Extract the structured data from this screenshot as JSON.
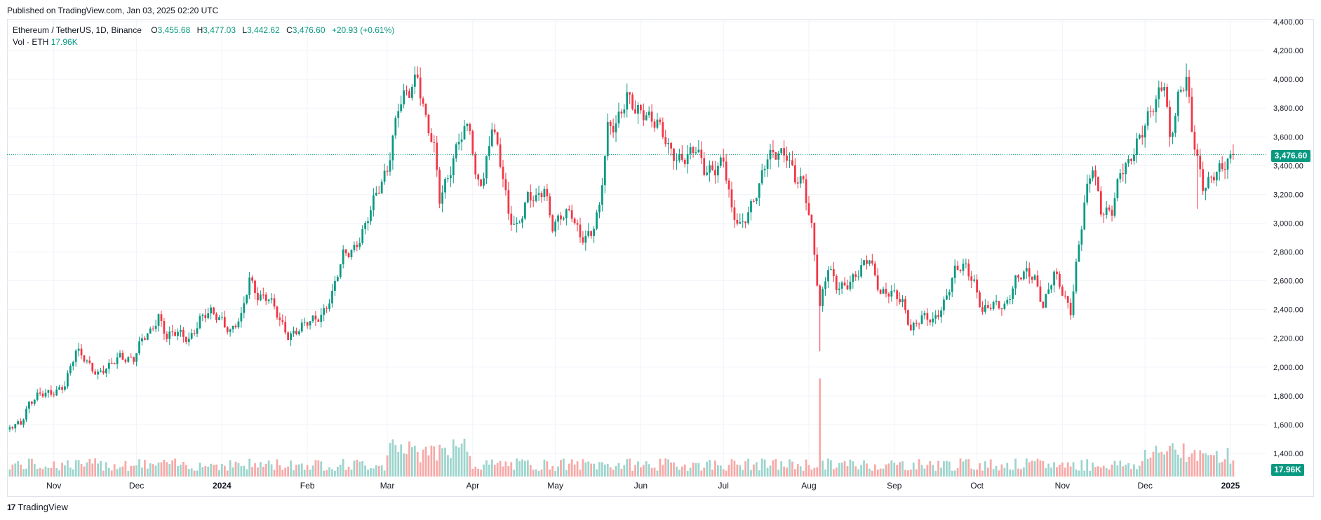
{
  "header": {
    "published": "Published on TradingView.com, Jan 03, 2025 02:20 UTC"
  },
  "legend": {
    "symbol": "Ethereum / TetherUS, 1D, Binance",
    "o_label": "O",
    "o_value": "3,455.68",
    "h_label": "H",
    "h_value": "3,477.03",
    "l_label": "L",
    "l_value": "3,442.62",
    "c_label": "C",
    "c_value": "3,476.60",
    "change": "+20.93 (+0.61%)",
    "vol_label": "Vol · ETH",
    "vol_value": "17.96K"
  },
  "price_tag": "3,476.60",
  "vol_tag": "17.96K",
  "footer": {
    "logo": "17",
    "brand": "TradingView"
  },
  "colors": {
    "up": "#089981",
    "down": "#f23645",
    "up_vol": "#9cd5cd",
    "down_vol": "#f7a9a7",
    "grid": "#f0f3fa",
    "axis_text": "#131722"
  },
  "chart_data": {
    "type": "candlestick",
    "title": "Ethereum / TetherUS, 1D, Binance",
    "ylim": [
      1500,
      4400
    ],
    "y_ticks": [
      "1,400.00",
      "1,600.00",
      "1,800.00",
      "2,000.00",
      "2,200.00",
      "2,400.00",
      "2,600.00",
      "2,800.00",
      "3,000.00",
      "3,200.00",
      "3,400.00",
      "3,600.00",
      "3,800.00",
      "4,000.00",
      "4,200.00",
      "4,400.00"
    ],
    "y_tick_values": [
      1400,
      1600,
      1800,
      2000,
      2200,
      2400,
      2600,
      2800,
      3000,
      3200,
      3400,
      3600,
      3800,
      4000,
      4200,
      4400
    ],
    "x_ticks": [
      {
        "label": "Nov",
        "date": "2023-11-01"
      },
      {
        "label": "Dec",
        "date": "2023-12-01"
      },
      {
        "label": "2024",
        "date": "2024-01-01",
        "bold": true
      },
      {
        "label": "Feb",
        "date": "2024-02-01"
      },
      {
        "label": "Mar",
        "date": "2024-03-01"
      },
      {
        "label": "Apr",
        "date": "2024-04-01"
      },
      {
        "label": "May",
        "date": "2024-05-01"
      },
      {
        "label": "Jun",
        "date": "2024-06-01"
      },
      {
        "label": "Jul",
        "date": "2024-07-01"
      },
      {
        "label": "Aug",
        "date": "2024-08-01"
      },
      {
        "label": "Sep",
        "date": "2024-09-01"
      },
      {
        "label": "Oct",
        "date": "2024-10-01"
      },
      {
        "label": "Nov",
        "date": "2024-11-01"
      },
      {
        "label": "Dec",
        "date": "2024-12-01"
      },
      {
        "label": "2025",
        "date": "2025-01-01",
        "bold": true
      }
    ],
    "x_range": [
      "2023-10-15",
      "2025-01-14"
    ],
    "last_price": 3476.6,
    "close_series": {
      "note_points": "daily closes estimated from the chart, as [date, close]",
      "points": [
        [
          "2023-10-16",
          1570
        ],
        [
          "2023-10-20",
          1610
        ],
        [
          "2023-10-23",
          1760
        ],
        [
          "2023-10-26",
          1800
        ],
        [
          "2023-10-31",
          1810
        ],
        [
          "2023-11-05",
          1890
        ],
        [
          "2023-11-09",
          2100
        ],
        [
          "2023-11-12",
          2060
        ],
        [
          "2023-11-17",
          1960
        ],
        [
          "2023-11-21",
          1990
        ],
        [
          "2023-11-25",
          2080
        ],
        [
          "2023-11-30",
          2060
        ],
        [
          "2023-12-03",
          2180
        ],
        [
          "2023-12-06",
          2240
        ],
        [
          "2023-12-09",
          2370
        ],
        [
          "2023-12-12",
          2210
        ],
        [
          "2023-12-16",
          2230
        ],
        [
          "2023-12-20",
          2200
        ],
        [
          "2023-12-24",
          2330
        ],
        [
          "2023-12-28",
          2370
        ],
        [
          "2024-01-01",
          2340
        ],
        [
          "2024-01-04",
          2250
        ],
        [
          "2024-01-08",
          2330
        ],
        [
          "2024-01-11",
          2620
        ],
        [
          "2024-01-14",
          2510
        ],
        [
          "2024-01-18",
          2470
        ],
        [
          "2024-01-22",
          2320
        ],
        [
          "2024-01-25",
          2230
        ],
        [
          "2024-01-29",
          2260
        ],
        [
          "2024-02-02",
          2310
        ],
        [
          "2024-02-06",
          2370
        ],
        [
          "2024-02-10",
          2500
        ],
        [
          "2024-02-14",
          2770
        ],
        [
          "2024-02-18",
          2840
        ],
        [
          "2024-02-22",
          2970
        ],
        [
          "2024-02-26",
          3190
        ],
        [
          "2024-03-01",
          3400
        ],
        [
          "2024-03-05",
          3800
        ],
        [
          "2024-03-09",
          3900
        ],
        [
          "2024-03-12",
          4050
        ],
        [
          "2024-03-15",
          3730
        ],
        [
          "2024-03-18",
          3500
        ],
        [
          "2024-03-20",
          3150
        ],
        [
          "2024-03-23",
          3330
        ],
        [
          "2024-03-27",
          3600
        ],
        [
          "2024-03-31",
          3650
        ],
        [
          "2024-04-02",
          3290
        ],
        [
          "2024-04-05",
          3330
        ],
        [
          "2024-04-08",
          3700
        ],
        [
          "2024-04-12",
          3300
        ],
        [
          "2024-04-14",
          3050
        ],
        [
          "2024-04-17",
          2990
        ],
        [
          "2024-04-21",
          3180
        ],
        [
          "2024-04-24",
          3140
        ],
        [
          "2024-04-27",
          3250
        ],
        [
          "2024-04-30",
          3000
        ],
        [
          "2024-05-03",
          3040
        ],
        [
          "2024-05-07",
          3050
        ],
        [
          "2024-05-10",
          2920
        ],
        [
          "2024-05-14",
          2930
        ],
        [
          "2024-05-17",
          3080
        ],
        [
          "2024-05-20",
          3660
        ],
        [
          "2024-05-23",
          3720
        ],
        [
          "2024-05-27",
          3870
        ],
        [
          "2024-05-30",
          3760
        ],
        [
          "2024-06-03",
          3780
        ],
        [
          "2024-06-07",
          3700
        ],
        [
          "2024-06-11",
          3500
        ],
        [
          "2024-06-14",
          3460
        ],
        [
          "2024-06-18",
          3480
        ],
        [
          "2024-06-21",
          3500
        ],
        [
          "2024-06-24",
          3360
        ],
        [
          "2024-06-28",
          3400
        ],
        [
          "2024-07-01",
          3440
        ],
        [
          "2024-07-04",
          3060
        ],
        [
          "2024-07-07",
          2980
        ],
        [
          "2024-07-10",
          3100
        ],
        [
          "2024-07-14",
          3240
        ],
        [
          "2024-07-17",
          3450
        ],
        [
          "2024-07-21",
          3520
        ],
        [
          "2024-07-24",
          3480
        ],
        [
          "2024-07-27",
          3280
        ],
        [
          "2024-07-30",
          3280
        ],
        [
          "2024-08-02",
          2990
        ],
        [
          "2024-08-05",
          2420
        ],
        [
          "2024-08-08",
          2680
        ],
        [
          "2024-08-11",
          2560
        ],
        [
          "2024-08-15",
          2590
        ],
        [
          "2024-08-19",
          2640
        ],
        [
          "2024-08-23",
          2760
        ],
        [
          "2024-08-27",
          2530
        ],
        [
          "2024-08-31",
          2500
        ],
        [
          "2024-09-04",
          2450
        ],
        [
          "2024-09-07",
          2280
        ],
        [
          "2024-09-11",
          2340
        ],
        [
          "2024-09-15",
          2310
        ],
        [
          "2024-09-19",
          2460
        ],
        [
          "2024-09-23",
          2660
        ],
        [
          "2024-09-27",
          2690
        ],
        [
          "2024-09-30",
          2600
        ],
        [
          "2024-10-03",
          2390
        ],
        [
          "2024-10-07",
          2420
        ],
        [
          "2024-10-11",
          2430
        ],
        [
          "2024-10-15",
          2610
        ],
        [
          "2024-10-19",
          2640
        ],
        [
          "2024-10-22",
          2620
        ],
        [
          "2024-10-25",
          2440
        ],
        [
          "2024-10-29",
          2640
        ],
        [
          "2024-11-01",
          2510
        ],
        [
          "2024-11-04",
          2400
        ],
        [
          "2024-11-06",
          2720
        ],
        [
          "2024-11-09",
          3130
        ],
        [
          "2024-11-12",
          3380
        ],
        [
          "2024-11-15",
          3100
        ],
        [
          "2024-11-19",
          3100
        ],
        [
          "2024-11-22",
          3330
        ],
        [
          "2024-11-25",
          3400
        ],
        [
          "2024-11-28",
          3580
        ],
        [
          "2024-12-01",
          3700
        ],
        [
          "2024-12-05",
          3820
        ],
        [
          "2024-12-08",
          3990
        ],
        [
          "2024-12-10",
          3600
        ],
        [
          "2024-12-13",
          3880
        ],
        [
          "2024-12-16",
          3980
        ],
        [
          "2024-12-18",
          3630
        ],
        [
          "2024-12-20",
          3450
        ],
        [
          "2024-12-22",
          3280
        ],
        [
          "2024-12-26",
          3330
        ],
        [
          "2024-12-29",
          3360
        ],
        [
          "2025-01-01",
          3455
        ],
        [
          "2025-01-02",
          3476.6
        ]
      ]
    },
    "notable_wicks": [
      {
        "date": "2024-03-12",
        "high": 4090
      },
      {
        "date": "2024-05-27",
        "high": 3970
      },
      {
        "date": "2024-08-05",
        "low": 2110
      },
      {
        "date": "2024-12-16",
        "high": 4110
      },
      {
        "date": "2024-12-20",
        "low": 3100
      }
    ],
    "volume_peaks_note": "spikes around Mar 2024, Aug 5 2024 and Dec 2024",
    "volume_series": {
      "note": "volume bars drawn under the price chart; last value 17.96K ETH",
      "last": "17.96K"
    }
  }
}
